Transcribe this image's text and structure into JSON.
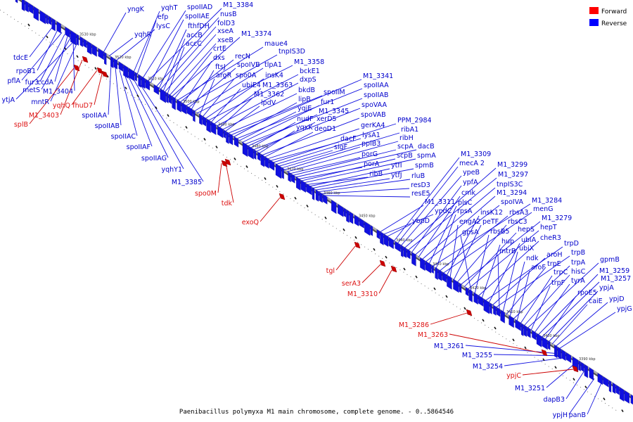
{
  "caption": "Paenibacillus polymyxa M1 main chromosome, complete genome. - 0..5864546",
  "legend": [
    {
      "label": "Forward",
      "color": "#ff0000"
    },
    {
      "label": "Reverse",
      "color": "#0000ff"
    }
  ],
  "colors": {
    "forward": "#cc0000",
    "forward_label": "#dd1111",
    "reverse": "#1010e0",
    "reverse_label": "#0000cc",
    "axis": "#888888"
  },
  "kbp_ticks": [
    "3530 kbp",
    "3520 kbp",
    "3510 kbp",
    "3500 kbp",
    "3490 kbp",
    "3480 kbp",
    "3470 kbp",
    "3460 kbp",
    "3450 kbp",
    "3440 kbp",
    "3430 kbp",
    "3420 kbp",
    "3410 kbp",
    "3400 kbp",
    "3390 kbp"
  ],
  "reverse_labels": [
    "yngK",
    "yqhT",
    "efp",
    "spoIIAD",
    "M1_3384",
    "spoIIAE",
    "nusB",
    "fthfDH",
    "folD3",
    "accB",
    "xseA",
    "accC",
    "xseB",
    "M1_3374",
    "crtE",
    "maue4",
    "recN",
    "dxs",
    "tnpIS3D",
    "spoIVB",
    "ftsJ",
    "tlpA1",
    "M1_3358",
    "argR",
    "spo0A",
    "insK4",
    "bckE1",
    "ubiE4",
    "M1_3363",
    "dxpS",
    "M1_3362",
    "bkdB",
    "lpdV",
    "spoIIM",
    "M1_3341",
    "lipB",
    "spoIIAA",
    "yqjE",
    "fur1",
    "spoIIAB",
    "M1_3345",
    "nudF",
    "spoVAA",
    "xerD5",
    "yqxK",
    "spoVAB",
    "deoD1",
    "gerKA4",
    "dacF",
    "PPM_2984",
    "lysA1",
    "sigF",
    "ribA1",
    "ppiB3",
    "ribH",
    "porG",
    "scpA",
    "dacB",
    "porA",
    "scpB",
    "spmA",
    "ribB",
    "ytfI",
    "spmB",
    "ytfJ",
    "rluB",
    "resD3",
    "resE5",
    "M1_3309",
    "mecA 2",
    "ypeB",
    "M1_3299",
    "M1_3297",
    "ypfA",
    "tnpIS3C",
    "cmk",
    "M1_3311",
    "M1_3294",
    "spoIVA",
    "plsC",
    "ypdC",
    "M1_3284",
    "rpsA",
    "rbsA3",
    "menG",
    "insK12",
    "ybpD",
    "engA2",
    "peTF",
    "rbsC3",
    "M1_3279",
    "hepS",
    "hepT",
    "gpsA",
    "rbsB5",
    "cheR3",
    "hup",
    "trpD",
    "ubiA",
    "aroH",
    "trpB",
    "mtrB",
    "ubiX",
    "trpE",
    "ndk",
    "trpA",
    "aroF",
    "trpC",
    "hisC",
    "gpmB",
    "trpF",
    "tyrA",
    "M1_3259",
    "M1_3257",
    "rpoE5",
    "ypjA",
    "caiE",
    "ypjD",
    "ypjG",
    "M1_3261",
    "M1_3255",
    "M1_3254",
    "M1_3251",
    "dapB3",
    "ypjH",
    "panB",
    "yqhR",
    "lysC",
    "tdcE",
    "rpoB1",
    "pflA",
    "fur3",
    "ccdA",
    "metS",
    "M1_3404",
    "ytjA",
    "mntR",
    "spoIIAA",
    "spoIIAB",
    "spoIIAC",
    "spoIIAF",
    "spoIIAG",
    "yqhY1",
    "M1_3385"
  ],
  "forward_labels": [
    "M1_3403",
    "yqhQ",
    "fhuD7",
    "splB",
    "spo0M",
    "tdk",
    "exoQ",
    "tgl",
    "serA3",
    "M1_3310",
    "M1_3286",
    "M1_3263",
    "ypjC"
  ]
}
